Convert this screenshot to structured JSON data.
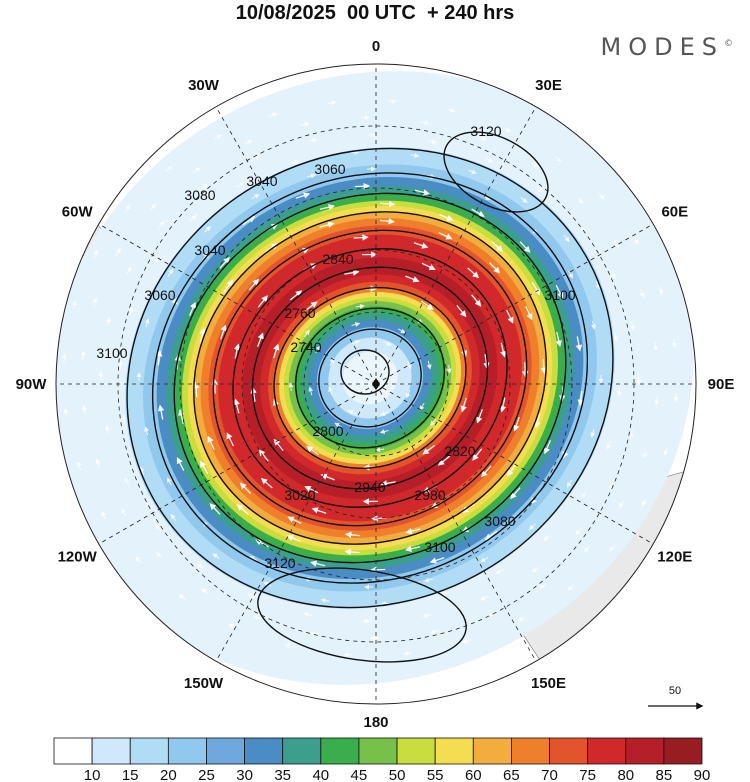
{
  "header": {
    "title": "10/08/2025  00 UTC  + 240 hrs",
    "brand": "MODES",
    "brand_mark": "©"
  },
  "map": {
    "projection": "polar stereographic (south pole)",
    "longitude_labels": [
      {
        "lon": 0,
        "text": "0"
      },
      {
        "lon": 30,
        "text": "30E"
      },
      {
        "lon": 60,
        "text": "60E"
      },
      {
        "lon": 90,
        "text": "90E"
      },
      {
        "lon": 120,
        "text": "120E"
      },
      {
        "lon": 150,
        "text": "150E"
      },
      {
        "lon": 180,
        "text": "180"
      },
      {
        "lon": -150,
        "text": "150W"
      },
      {
        "lon": -120,
        "text": "120W"
      },
      {
        "lon": -90,
        "text": "90W"
      },
      {
        "lon": -60,
        "text": "60W"
      },
      {
        "lon": -30,
        "text": "30W"
      }
    ],
    "contour_labels": [
      "3120",
      "3060",
      "3080",
      "3040",
      "3100",
      "2840",
      "2760",
      "2740",
      "2800",
      "2820",
      "2940",
      "2980",
      "3020",
      "3080",
      "3100",
      "3120",
      "3100",
      "3060",
      "3040"
    ],
    "vector_reference": {
      "value": "50"
    },
    "colors": {
      "land": "#e9e9e9",
      "vector": "#ffffff",
      "contour": "#111111",
      "grid": "#222222"
    }
  },
  "colorbar": {
    "labels": [
      "10",
      "15",
      "20",
      "25",
      "30",
      "35",
      "40",
      "45",
      "50",
      "55",
      "60",
      "65",
      "70",
      "75",
      "80",
      "85",
      "90"
    ],
    "colors": [
      "#ffffff",
      "#cfe9fa",
      "#b1dcf6",
      "#91c8ee",
      "#6fa8dc",
      "#4a8cc4",
      "#3c9f8d",
      "#3aae4c",
      "#77c14a",
      "#c9dd3e",
      "#f5dd52",
      "#f3ac3e",
      "#ef7f2b",
      "#e4542c",
      "#d0282b",
      "#b61f28",
      "#971d22"
    ]
  }
}
